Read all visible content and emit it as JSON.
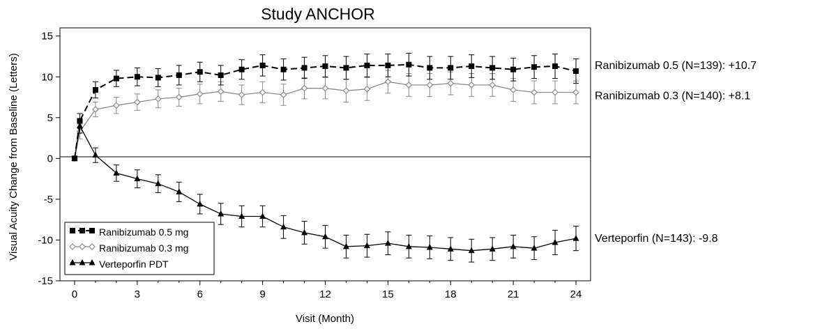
{
  "chart_data": {
    "type": "line",
    "title": "Study ANCHOR",
    "xlabel": "Visit (Month)",
    "ylabel": "Visual Acuity Change from Baseline (Letters)",
    "xlim": [
      -0.7,
      24.7
    ],
    "ylim": [
      -15,
      16
    ],
    "x_ticks": [
      0,
      3,
      6,
      9,
      12,
      15,
      18,
      21,
      24
    ],
    "y_ticks": [
      -15,
      -10,
      -5,
      0,
      5,
      10,
      15
    ],
    "x": [
      0,
      0.25,
      1,
      2,
      3,
      4,
      5,
      6,
      7,
      8,
      9,
      10,
      11,
      12,
      13,
      14,
      15,
      16,
      17,
      18,
      19,
      20,
      21,
      22,
      23,
      24
    ],
    "reference_line_y": 0,
    "legend_position": "bottom-left",
    "series": [
      {
        "name": "Ranibizumab 0.5 mg",
        "color": "#000000",
        "marker": "square",
        "line": "dashed",
        "values": [
          0,
          4.6,
          8.4,
          9.8,
          10.0,
          9.9,
          10.2,
          10.6,
          10.2,
          10.9,
          11.4,
          10.9,
          11.1,
          11.3,
          11.1,
          11.4,
          11.4,
          11.5,
          11.1,
          11.1,
          11.3,
          11.1,
          10.9,
          11.2,
          11.3,
          10.7
        ],
        "errors": [
          0,
          0.9,
          1.0,
          1.0,
          1.1,
          1.1,
          1.2,
          1.2,
          1.2,
          1.2,
          1.3,
          1.3,
          1.3,
          1.3,
          1.4,
          1.4,
          1.4,
          1.4,
          1.4,
          1.4,
          1.4,
          1.4,
          1.4,
          1.4,
          1.5,
          1.5
        ]
      },
      {
        "name": "Ranibizumab 0.3 mg",
        "color": "#8a8a8a",
        "marker": "diamond",
        "line": "solid",
        "values": [
          0,
          3.3,
          6.0,
          6.5,
          6.9,
          7.3,
          7.5,
          7.9,
          8.2,
          7.8,
          8.1,
          7.8,
          8.6,
          8.6,
          8.3,
          8.5,
          9.4,
          9.0,
          9.0,
          9.2,
          9.0,
          9.0,
          8.4,
          8.1,
          8.1,
          8.1
        ],
        "errors": [
          0,
          0.9,
          0.9,
          1.0,
          1.0,
          1.1,
          1.1,
          1.2,
          1.2,
          1.2,
          1.3,
          1.3,
          1.3,
          1.3,
          1.4,
          1.4,
          1.4,
          1.4,
          1.4,
          1.4,
          1.4,
          1.4,
          1.4,
          1.4,
          1.4,
          1.4
        ]
      },
      {
        "name": "Verteporfin PDT",
        "color": "#000000",
        "marker": "triangle",
        "line": "solid",
        "values": [
          0,
          4.0,
          0.4,
          -1.8,
          -2.5,
          -3.1,
          -4.1,
          -5.6,
          -6.8,
          -7.1,
          -7.1,
          -8.4,
          -9.1,
          -9.6,
          -10.8,
          -10.7,
          -10.4,
          -10.8,
          -10.9,
          -11.1,
          -11.3,
          -11.1,
          -10.8,
          -11.0,
          -10.3,
          -9.8
        ],
        "errors": [
          0,
          0.9,
          0.9,
          1.0,
          1.1,
          1.1,
          1.2,
          1.2,
          1.3,
          1.3,
          1.3,
          1.4,
          1.4,
          1.4,
          1.4,
          1.4,
          1.4,
          1.4,
          1.4,
          1.4,
          1.4,
          1.4,
          1.4,
          1.4,
          1.5,
          1.5
        ]
      }
    ],
    "end_annotations": [
      {
        "text": "Ranibizumab 0.5 (N=139): +10.7"
      },
      {
        "text": "Ranibizumab 0.3 (N=140): +8.1"
      },
      {
        "text": "Verteporfin (N=143): -9.8"
      }
    ]
  }
}
